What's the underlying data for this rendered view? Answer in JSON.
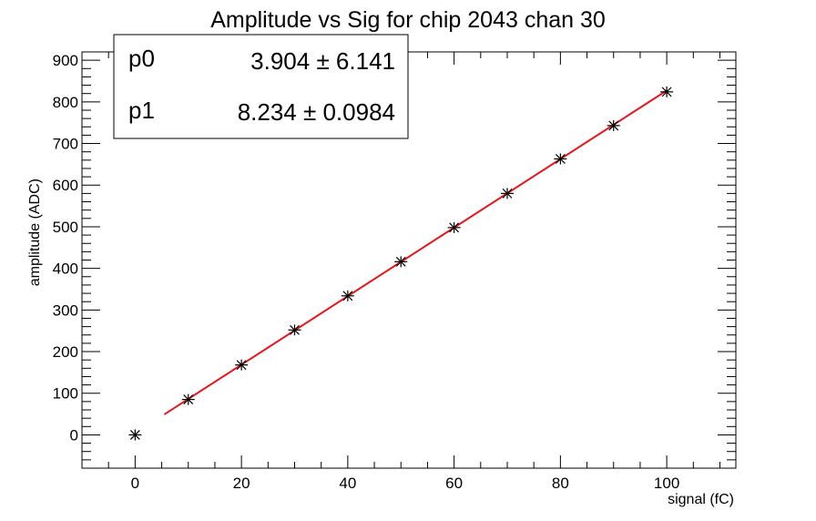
{
  "chart_data": {
    "type": "scatter",
    "title": "Amplitude vs Sig for chip 2043 chan 30",
    "xlabel": "signal (fC)",
    "ylabel": "amplitude (ADC)",
    "xlim": [
      -10,
      113
    ],
    "ylim": [
      -80,
      920
    ],
    "x_ticks": [
      0,
      20,
      40,
      60,
      80,
      100
    ],
    "y_ticks": [
      0,
      100,
      200,
      300,
      400,
      500,
      600,
      700,
      800,
      900
    ],
    "points": {
      "x": [
        0,
        10,
        20,
        30,
        40,
        50,
        60,
        70,
        80,
        90,
        100
      ],
      "y": [
        0,
        85,
        168,
        252,
        334,
        416,
        498,
        580,
        663,
        743,
        824
      ]
    },
    "fit": {
      "type": "linear",
      "x_range": [
        5.5,
        100
      ],
      "p0": 3.904,
      "p1": 8.234,
      "color": "#e8141a"
    },
    "stats_box": {
      "rows": [
        {
          "name": "p0",
          "value": "3.904 ± 6.141"
        },
        {
          "name": "p1",
          "value": "8.234 ± 0.0984"
        }
      ]
    },
    "grid": false
  }
}
